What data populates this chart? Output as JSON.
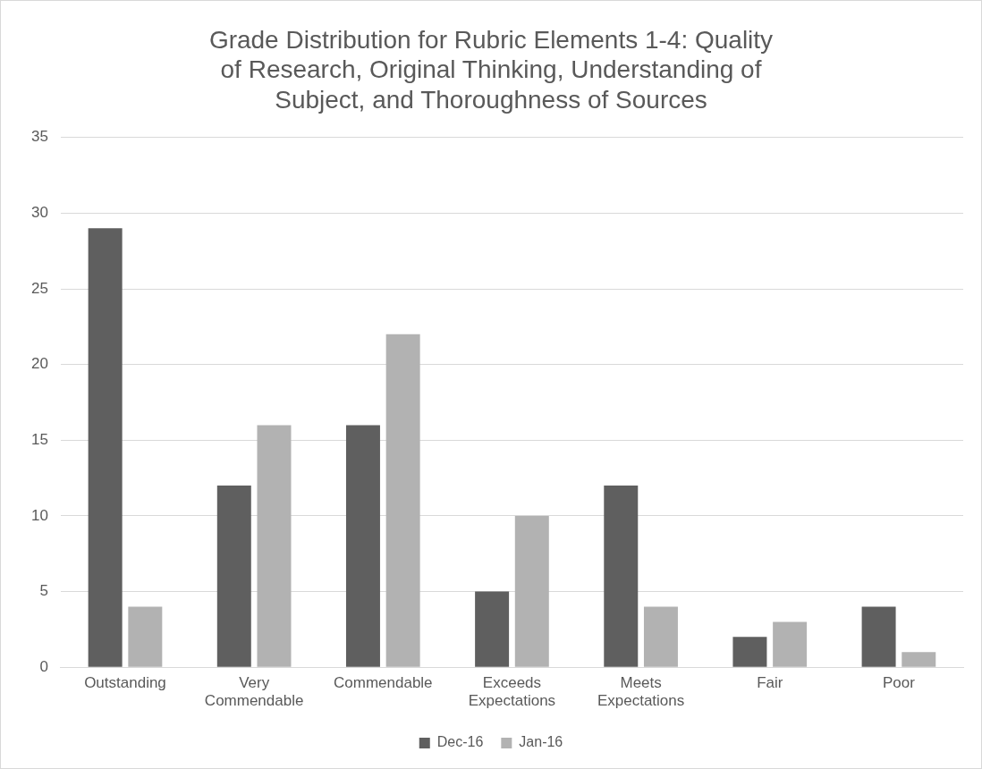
{
  "chart_data": {
    "type": "bar",
    "title": "Grade Distribution for Rubric Elements 1-4: Quality of Research, Original Thinking, Understanding of Subject, and Thoroughness of Sources",
    "categories": [
      "Outstanding",
      "Very Commendable",
      "Commendable",
      "Exceeds Expectations",
      "Meets Expectations",
      "Fair",
      "Poor"
    ],
    "series": [
      {
        "name": "Dec-16",
        "color": "#5f5f5f",
        "values": [
          29,
          12,
          16,
          5,
          12,
          2,
          4
        ]
      },
      {
        "name": "Jan-16",
        "color": "#b2b2b2",
        "values": [
          4,
          16,
          22,
          10,
          4,
          3,
          1
        ]
      }
    ],
    "ylim": [
      0,
      35
    ],
    "yticks": [
      0,
      5,
      10,
      15,
      20,
      25,
      30,
      35
    ],
    "grid": "y",
    "legend": "bottom"
  }
}
